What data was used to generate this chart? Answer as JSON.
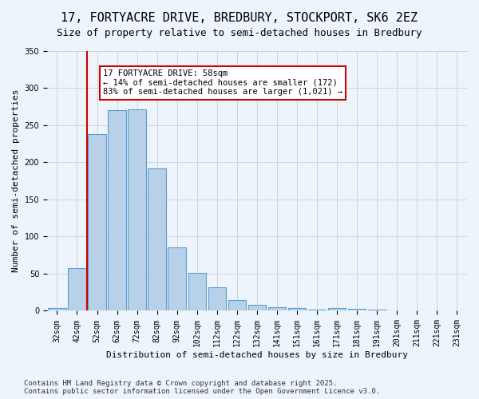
{
  "title": "17, FORTYACRE DRIVE, BREDBURY, STOCKPORT, SK6 2EZ",
  "subtitle": "Size of property relative to semi-detached houses in Bredbury",
  "xlabel": "Distribution of semi-detached houses by size in Bredbury",
  "ylabel": "Number of semi-detached properties",
  "categories": [
    "32sqm",
    "42sqm",
    "52sqm",
    "62sqm",
    "72sqm",
    "82sqm",
    "92sqm",
    "102sqm",
    "112sqm",
    "122sqm",
    "132sqm",
    "141sqm",
    "151sqm",
    "161sqm",
    "171sqm",
    "181sqm",
    "191sqm",
    "201sqm",
    "211sqm",
    "221sqm",
    "231sqm"
  ],
  "values": [
    4,
    58,
    238,
    270,
    272,
    192,
    85,
    51,
    32,
    15,
    8,
    5,
    4,
    2,
    4,
    3,
    2,
    0,
    0,
    0,
    1
  ],
  "bar_color": "#b8d0e8",
  "bar_edgecolor": "#5a9fd4",
  "vline_x": 1,
  "vline_color": "#cc0000",
  "annotation_text": "17 FORTYACRE DRIVE: 58sqm\n← 14% of semi-detached houses are smaller (172)\n83% of semi-detached houses are larger (1,021) →",
  "annotation_boxcolor": "white",
  "annotation_edgecolor": "#cc0000",
  "ylim": [
    0,
    350
  ],
  "yticks": [
    0,
    50,
    100,
    150,
    200,
    250,
    300,
    350
  ],
  "footer_text": "Contains HM Land Registry data © Crown copyright and database right 2025.\nContains public sector information licensed under the Open Government Licence v3.0.",
  "bg_color": "#eef4fb",
  "plot_bg_color": "#eef4fb",
  "title_fontsize": 11,
  "subtitle_fontsize": 9,
  "tick_fontsize": 7,
  "label_fontsize": 8
}
